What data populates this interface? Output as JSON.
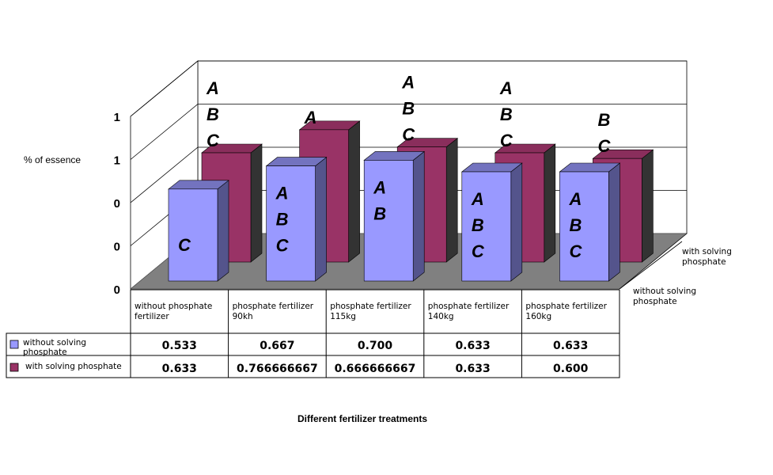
{
  "chart_data": {
    "type": "bar",
    "title": "",
    "xlabel": "Different fertilizer treatments",
    "ylabel": "% of essence",
    "yticks": [
      "0",
      "0",
      "0",
      "1",
      "1"
    ],
    "categories": [
      "without phosphate fertilizer",
      "phosphate fertilizer 90kh",
      "phosphate fertilizer 115kg",
      "phosphate fertilizer 140kg",
      "phosphate fertilizer 160kg"
    ],
    "series": [
      {
        "name": "without solving phosphate",
        "color": "#9999ff",
        "values": [
          0.533,
          0.667,
          0.7,
          0.633,
          0.633
        ],
        "value_labels": [
          "0.533",
          "0.667",
          "0.700",
          "0.633",
          "0.633"
        ],
        "letters": [
          "C",
          "A B C",
          "A B",
          "A B C",
          "A B C"
        ]
      },
      {
        "name": "with solving phosphate",
        "color": "#993366",
        "values": [
          0.633,
          0.766666667,
          0.666666667,
          0.633,
          0.6
        ],
        "value_labels": [
          "0.633",
          "0.766666667",
          "0.666666667",
          "0.633",
          "0.600"
        ],
        "letters": [
          "A B C",
          "A",
          "A B C",
          "A B C",
          "B C"
        ]
      }
    ],
    "depth_labels": [
      "with solving phosphate",
      "without solving phosphate"
    ],
    "grid": true,
    "legend": "data-table"
  }
}
